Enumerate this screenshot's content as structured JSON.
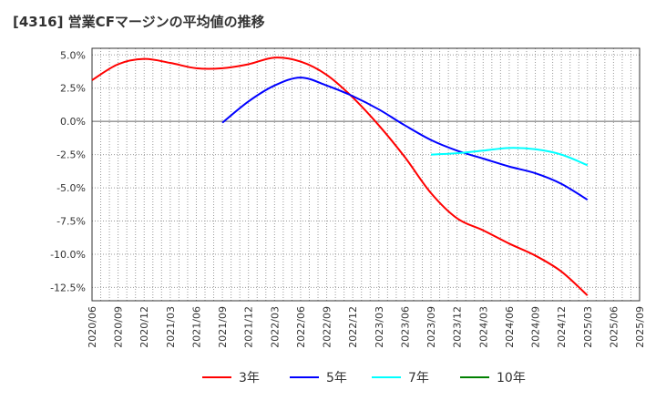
{
  "chart_data": {
    "type": "line",
    "title": "[4316]  営業CFマージンの平均値の推移",
    "x": [
      "2020/06",
      "2020/09",
      "2020/12",
      "2021/03",
      "2021/06",
      "2021/09",
      "2021/12",
      "2022/03",
      "2022/06",
      "2022/09",
      "2022/12",
      "2023/03",
      "2023/06",
      "2023/09",
      "2023/12",
      "2024/03",
      "2024/06",
      "2024/09",
      "2024/12",
      "2025/03",
      "2025/06",
      "2025/09"
    ],
    "yticks": [
      5.0,
      2.5,
      0.0,
      -2.5,
      -5.0,
      -7.5,
      -10.0,
      -12.5
    ],
    "ytick_labels": [
      "5.0%",
      "2.5%",
      "0.0%",
      "-2.5%",
      "-5.0%",
      "-7.5%",
      "-10.0%",
      "-12.5%"
    ],
    "ylim": [
      -13.5,
      5.5
    ],
    "grid": true,
    "legend_position": "bottom",
    "series": [
      {
        "name": "3年",
        "color": "#ff0000",
        "values": [
          3.1,
          4.3,
          4.7,
          4.4,
          4.0,
          4.0,
          4.3,
          4.8,
          4.5,
          3.5,
          1.8,
          -0.3,
          -2.7,
          -5.4,
          -7.3,
          -8.2,
          -9.2,
          -10.1,
          -11.3,
          -13.1,
          null,
          null
        ]
      },
      {
        "name": "5年",
        "color": "#0000ff",
        "values": [
          null,
          null,
          null,
          null,
          null,
          -0.1,
          1.5,
          2.7,
          3.3,
          2.7,
          1.9,
          0.9,
          -0.3,
          -1.4,
          -2.2,
          -2.8,
          -3.4,
          -3.9,
          -4.7,
          -5.9,
          null,
          null
        ]
      },
      {
        "name": "7年",
        "color": "#00ffff",
        "values": [
          null,
          null,
          null,
          null,
          null,
          null,
          null,
          null,
          null,
          null,
          null,
          null,
          null,
          -2.5,
          -2.4,
          -2.2,
          -2.0,
          -2.1,
          -2.5,
          -3.3,
          null,
          null
        ]
      },
      {
        "name": "10年",
        "color": "#008000",
        "values": [
          null,
          null,
          null,
          null,
          null,
          null,
          null,
          null,
          null,
          null,
          null,
          null,
          null,
          null,
          null,
          null,
          null,
          null,
          null,
          null,
          null,
          null
        ]
      }
    ]
  }
}
